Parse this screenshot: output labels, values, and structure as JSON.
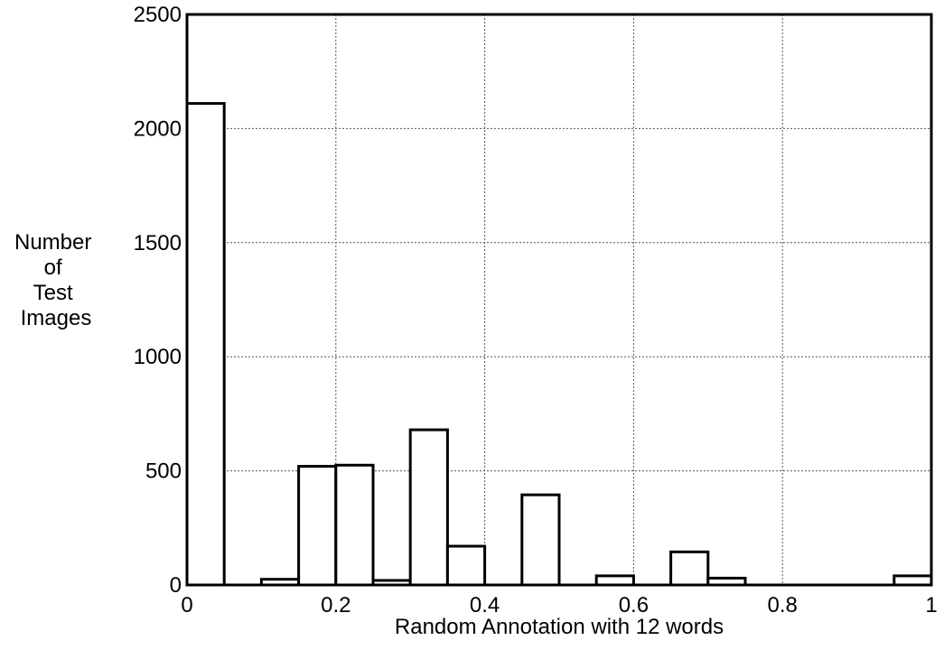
{
  "chart_data": {
    "type": "bar",
    "title": "",
    "xlabel": "Random Annotation with 12 words",
    "ylabel_lines": [
      "Number",
      "of",
      "Test",
      "Images"
    ],
    "xlim": [
      0,
      1
    ],
    "ylim": [
      0,
      2500
    ],
    "grid": true,
    "x_ticks": [
      0,
      0.2,
      0.4,
      0.6,
      0.8,
      1
    ],
    "x_tick_labels": [
      "0",
      "0.2",
      "0.4",
      "0.6",
      "0.8",
      "1"
    ],
    "y_ticks": [
      0,
      500,
      1000,
      1500,
      2000,
      2500
    ],
    "y_tick_labels": [
      "0",
      "500",
      "1000",
      "1500",
      "2000",
      "2500"
    ],
    "bin_width": 0.05,
    "bins": [
      {
        "x0": 0.0,
        "x1": 0.05,
        "value": 2110
      },
      {
        "x0": 0.05,
        "x1": 0.1,
        "value": 0
      },
      {
        "x0": 0.1,
        "x1": 0.15,
        "value": 25
      },
      {
        "x0": 0.15,
        "x1": 0.2,
        "value": 520
      },
      {
        "x0": 0.2,
        "x1": 0.25,
        "value": 525
      },
      {
        "x0": 0.25,
        "x1": 0.3,
        "value": 20
      },
      {
        "x0": 0.3,
        "x1": 0.35,
        "value": 680
      },
      {
        "x0": 0.35,
        "x1": 0.4,
        "value": 170
      },
      {
        "x0": 0.4,
        "x1": 0.45,
        "value": 0
      },
      {
        "x0": 0.45,
        "x1": 0.5,
        "value": 395
      },
      {
        "x0": 0.5,
        "x1": 0.55,
        "value": 0
      },
      {
        "x0": 0.55,
        "x1": 0.6,
        "value": 40
      },
      {
        "x0": 0.6,
        "x1": 0.65,
        "value": 0
      },
      {
        "x0": 0.65,
        "x1": 0.7,
        "value": 145
      },
      {
        "x0": 0.7,
        "x1": 0.75,
        "value": 30
      },
      {
        "x0": 0.75,
        "x1": 0.8,
        "value": 0
      },
      {
        "x0": 0.8,
        "x1": 0.85,
        "value": 0
      },
      {
        "x0": 0.85,
        "x1": 0.9,
        "value": 0
      },
      {
        "x0": 0.9,
        "x1": 0.95,
        "value": 0
      },
      {
        "x0": 0.95,
        "x1": 1.0,
        "value": 40
      }
    ]
  }
}
